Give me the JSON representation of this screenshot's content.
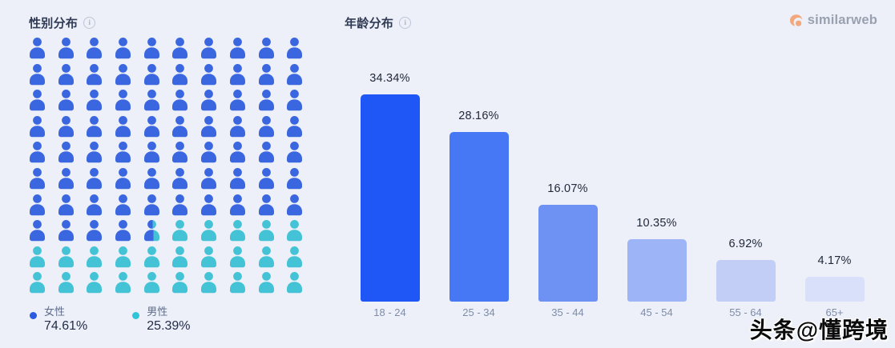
{
  "background": "#EDF0F8",
  "gender": {
    "title": "性别分布",
    "info_icon": "i",
    "legend": [
      {
        "label": "女性",
        "value": "74.61%",
        "color": "#2A5BE0"
      },
      {
        "label": "男性",
        "value": "25.39%",
        "color": "#2FC5D9"
      }
    ]
  },
  "age": {
    "title": "年龄分布",
    "info_icon": "i"
  },
  "logo": {
    "text": "similarweb",
    "icon_color": "#F2A77C"
  },
  "watermark": {
    "text": "头条@懂跨境"
  },
  "chart_data": [
    {
      "type": "pictogram",
      "title": "性别分布",
      "categories": [
        "女性",
        "男性"
      ],
      "values": [
        74.61,
        25.39
      ],
      "total_icons": 100,
      "layout": "10x10",
      "colors": [
        "#3A66E0",
        "#43C3D5"
      ],
      "legend_position": "bottom"
    },
    {
      "type": "bar",
      "title": "年龄分布",
      "categories": [
        "18 - 24",
        "25 - 34",
        "35 - 44",
        "45 - 54",
        "55 - 64",
        "65+"
      ],
      "values": [
        34.34,
        28.16,
        16.07,
        10.35,
        6.92,
        4.17
      ],
      "bar_colors": [
        "#1E57F5",
        "#4678F6",
        "#6E92F3",
        "#9DB4F6",
        "#C2CEF6",
        "#D9E0FA"
      ],
      "value_label_position": "above",
      "value_label_format": "percent",
      "xlabel": "",
      "ylabel": "",
      "ylim": [
        0,
        36
      ],
      "grid": false
    }
  ]
}
